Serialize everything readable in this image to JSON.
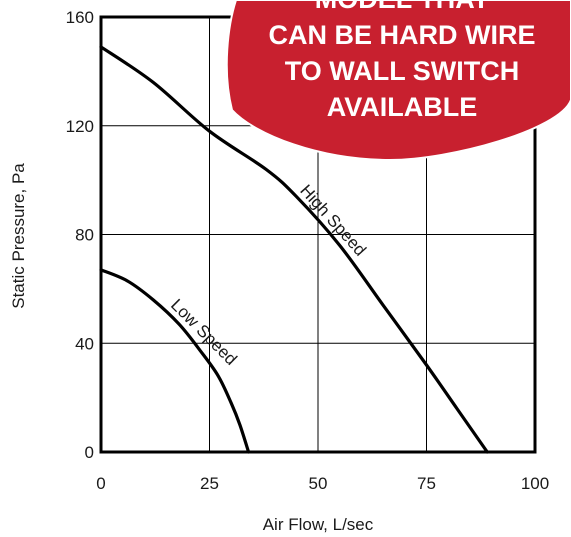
{
  "chart_data": {
    "type": "line",
    "xlabel": "Air Flow, L/sec",
    "ylabel": "Static Pressure, Pa",
    "xlim": [
      0,
      100
    ],
    "ylim": [
      0,
      160
    ],
    "xticks": [
      "0",
      "25",
      "50",
      "75",
      "100"
    ],
    "yticks": [
      "0",
      "40",
      "80",
      "120",
      "160"
    ],
    "grid": true,
    "series": [
      {
        "name": "High Speed",
        "x": [
          0,
          12,
          25,
          38,
          45,
          55,
          65,
          75,
          82,
          89
        ],
        "y": [
          149,
          136,
          118,
          104,
          94,
          76,
          54,
          32,
          16,
          0
        ]
      },
      {
        "name": "Low Speed",
        "x": [
          0,
          6,
          12,
          18,
          23,
          27,
          30,
          32,
          34
        ],
        "y": [
          67,
          63,
          56,
          47,
          37,
          28,
          18,
          10,
          0
        ]
      }
    ],
    "curve_colors": [
      "#000000",
      "#000000"
    ]
  },
  "banner": {
    "lines": [
      "MODEL THAT",
      "CAN BE HARD WIRE",
      "TO WALL SWITCH",
      "AVAILABLE"
    ],
    "color": "#c8202f"
  }
}
